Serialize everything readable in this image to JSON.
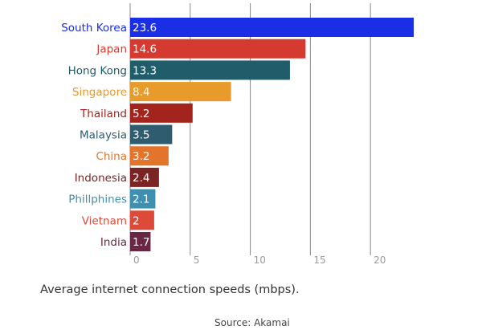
{
  "chart_data": {
    "type": "bar",
    "orientation": "horizontal",
    "categories": [
      "South Korea",
      "Japan",
      "Hong Kong",
      "Singapore",
      "Thailand",
      "Malaysia",
      "China",
      "Indonesia",
      "Phillphines",
      "Vietnam",
      "India"
    ],
    "values": [
      23.6,
      14.6,
      13.3,
      8.4,
      5.2,
      3.5,
      3.2,
      2.4,
      2.1,
      2,
      1.7
    ],
    "value_labels": [
      "23.6",
      "14.6",
      "13.3",
      "8.4",
      "5.2",
      "3.5",
      "3.2",
      "2.4",
      "2.1",
      "2",
      "1.7"
    ],
    "colors": [
      "#1a2ee6",
      "#d43a2f",
      "#215c6b",
      "#e89a2a",
      "#a3241c",
      "#2f5d6f",
      "#e2752b",
      "#7c2424",
      "#3e8fb0",
      "#dd4a3a",
      "#6a2744"
    ],
    "x_ticks": [
      0,
      5,
      10,
      15,
      20
    ],
    "xlim": [
      0,
      23.6
    ],
    "grid": true,
    "caption": "Average internet connection speeds (mbps).",
    "source": "Source: Akamai"
  }
}
